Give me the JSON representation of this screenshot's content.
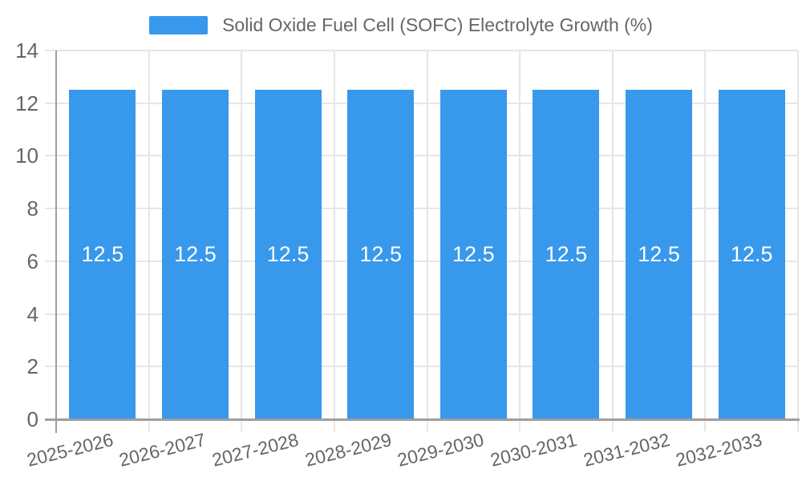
{
  "legend": {
    "label": "Solid Oxide Fuel Cell (SOFC) Electrolyte Growth (%)"
  },
  "chart_data": {
    "type": "bar",
    "title": "Solid Oxide Fuel Cell (SOFC) Electrolyte Growth (%)",
    "categories": [
      "2025-2026",
      "2026-2027",
      "2027-2028",
      "2028-2029",
      "2029-2030",
      "2030-2031",
      "2031-2032",
      "2032-2033"
    ],
    "series": [
      {
        "name": "Solid Oxide Fuel Cell (SOFC) Electrolyte Growth (%)",
        "values": [
          12.5,
          12.5,
          12.5,
          12.5,
          12.5,
          12.5,
          12.5,
          12.5
        ]
      }
    ],
    "bar_value_labels": [
      "12.5",
      "12.5",
      "12.5",
      "12.5",
      "12.5",
      "12.5",
      "12.5",
      "12.5"
    ],
    "xlabel": "",
    "ylabel": "",
    "ylim": [
      0,
      14
    ],
    "ytick_step": 2,
    "ytick_labels": [
      "0",
      "2",
      "4",
      "6",
      "8",
      "10",
      "12",
      "14"
    ],
    "grid": true,
    "legend_position": "top",
    "colors": {
      "bar": "#3898ec",
      "grid": "#e6e6e6",
      "axis": "#9e9e9e",
      "text": "#666666",
      "bar_label": "#ffffff",
      "background": "#ffffff"
    }
  }
}
